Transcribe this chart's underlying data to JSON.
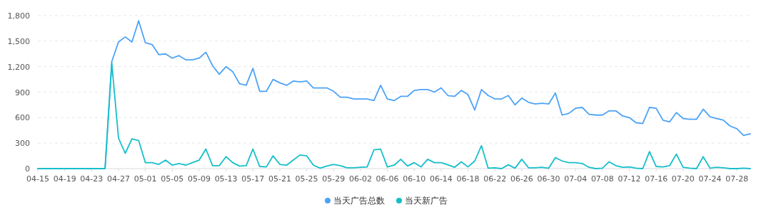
{
  "chart_data": {
    "type": "line",
    "categories": [
      "04-15",
      null,
      null,
      null,
      "04-19",
      null,
      null,
      null,
      "04-23",
      null,
      null,
      null,
      "04-27",
      null,
      null,
      null,
      "05-01",
      null,
      null,
      null,
      "05-05",
      null,
      null,
      null,
      "05-09",
      null,
      null,
      null,
      "05-13",
      null,
      null,
      null,
      "05-17",
      null,
      null,
      null,
      "05-21",
      null,
      null,
      null,
      "05-25",
      null,
      null,
      null,
      "05-29",
      null,
      null,
      null,
      "06-02",
      null,
      null,
      null,
      "06-06",
      null,
      null,
      null,
      "06-10",
      null,
      null,
      null,
      "06-14",
      null,
      null,
      null,
      "06-18",
      null,
      null,
      null,
      "06-22",
      null,
      null,
      null,
      "06-26",
      null,
      null,
      null,
      "06-30",
      null,
      null,
      null,
      "07-04",
      null,
      null,
      null,
      "07-08",
      null,
      null,
      null,
      "07-12",
      null,
      null,
      null,
      "07-16",
      null,
      null,
      null,
      "07-20",
      null,
      null,
      null,
      "07-24",
      null,
      null,
      null,
      "07-28",
      null,
      null
    ],
    "series": [
      {
        "name": "当天广告总数",
        "color": "#4da3f7",
        "values": [
          0,
          0,
          0,
          0,
          0,
          0,
          0,
          0,
          0,
          0,
          0,
          1260,
          1490,
          1550,
          1490,
          1740,
          1480,
          1460,
          1340,
          1350,
          1300,
          1330,
          1280,
          1280,
          1300,
          1370,
          1210,
          1110,
          1200,
          1140,
          1000,
          980,
          1180,
          910,
          910,
          1050,
          1010,
          980,
          1030,
          1020,
          1030,
          950,
          950,
          950,
          910,
          840,
          840,
          820,
          820,
          820,
          800,
          980,
          820,
          800,
          850,
          850,
          920,
          930,
          930,
          900,
          950,
          860,
          850,
          920,
          870,
          690,
          930,
          860,
          820,
          820,
          860,
          750,
          830,
          780,
          760,
          770,
          760,
          890,
          630,
          650,
          710,
          720,
          640,
          630,
          630,
          680,
          680,
          620,
          600,
          540,
          530,
          720,
          710,
          570,
          550,
          660,
          590,
          580,
          580,
          700,
          610,
          590,
          570,
          500,
          470,
          390,
          410
        ]
      },
      {
        "name": "当天新广告",
        "color": "#15bfca",
        "values": [
          0,
          0,
          0,
          0,
          0,
          0,
          0,
          0,
          0,
          0,
          0,
          1240,
          360,
          180,
          350,
          330,
          70,
          70,
          50,
          100,
          40,
          60,
          40,
          70,
          100,
          230,
          35,
          35,
          140,
          70,
          30,
          35,
          230,
          25,
          20,
          150,
          50,
          40,
          100,
          160,
          150,
          40,
          5,
          30,
          50,
          35,
          10,
          10,
          15,
          20,
          220,
          230,
          20,
          40,
          110,
          30,
          70,
          20,
          110,
          70,
          70,
          45,
          15,
          80,
          20,
          90,
          270,
          5,
          10,
          0,
          45,
          5,
          110,
          10,
          10,
          15,
          5,
          130,
          90,
          70,
          70,
          60,
          15,
          0,
          5,
          80,
          35,
          15,
          20,
          5,
          0,
          200,
          25,
          20,
          35,
          170,
          15,
          5,
          0,
          140,
          5,
          15,
          10,
          0,
          0,
          5,
          0
        ]
      }
    ],
    "ylim": [
      0,
      1800
    ],
    "yticks": [
      0,
      {
        "value": 300,
        "label": "300"
      },
      {
        "value": 600,
        "label": "600"
      },
      {
        "value": 900,
        "label": "900"
      },
      {
        "value": 1200,
        "label": "1,200"
      },
      {
        "value": 1500,
        "label": "1,500"
      },
      {
        "value": 1800,
        "label": "1,800"
      }
    ],
    "grid": "y",
    "legend": "bottom",
    "marker": "none",
    "line_style": "solid"
  }
}
